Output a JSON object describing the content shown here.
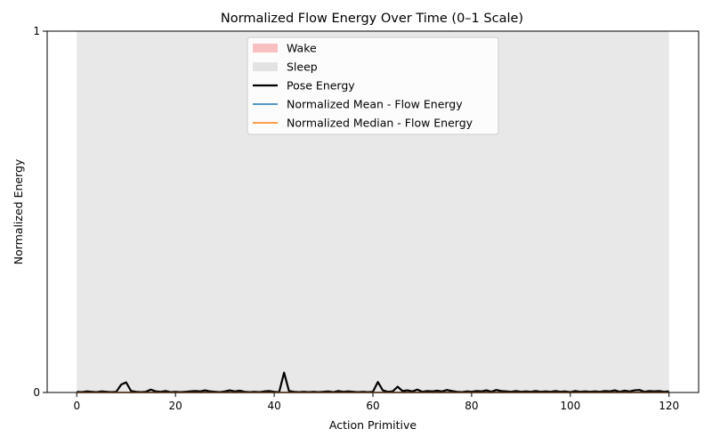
{
  "chart_data": {
    "type": "line",
    "title": "Normalized Flow Energy Over Time (0–1 Scale)",
    "xlabel": "Action Primitive",
    "ylabel": "Normalized Energy",
    "xlim": [
      -6,
      126
    ],
    "ylim": [
      0,
      1
    ],
    "xticks": [
      "0",
      "20",
      "40",
      "60",
      "80",
      "100",
      "120"
    ],
    "yticks": [
      "0",
      "1"
    ],
    "grid": false,
    "legend_position": "top-center",
    "regions": [
      {
        "name": "Wake",
        "color": "#f7a6a6",
        "spans": []
      },
      {
        "name": "Sleep",
        "color": "#d9d9d9",
        "spans": [
          [
            0,
            120
          ]
        ]
      }
    ],
    "series": [
      {
        "name": "Pose Energy",
        "color": "#000000",
        "x": [
          0,
          1,
          2,
          3,
          4,
          5,
          6,
          7,
          8,
          9,
          10,
          11,
          12,
          13,
          14,
          15,
          16,
          17,
          18,
          19,
          20,
          21,
          22,
          23,
          24,
          25,
          26,
          27,
          28,
          29,
          30,
          31,
          32,
          33,
          34,
          35,
          36,
          37,
          38,
          39,
          40,
          41,
          42,
          43,
          44,
          45,
          46,
          47,
          48,
          49,
          50,
          51,
          52,
          53,
          54,
          55,
          56,
          57,
          58,
          59,
          60,
          61,
          62,
          63,
          64,
          65,
          66,
          67,
          68,
          69,
          70,
          71,
          72,
          73,
          74,
          75,
          76,
          77,
          78,
          79,
          80,
          81,
          82,
          83,
          84,
          85,
          86,
          87,
          88,
          89,
          90,
          91,
          92,
          93,
          94,
          95,
          96,
          97,
          98,
          99,
          100,
          101,
          102,
          103,
          104,
          105,
          106,
          107,
          108,
          109,
          110,
          111,
          112,
          113,
          114,
          115,
          116,
          117,
          118,
          119,
          120
        ],
        "values": [
          0.002,
          0.001,
          0.003,
          0.002,
          0.001,
          0.003,
          0.002,
          0.001,
          0.002,
          0.022,
          0.028,
          0.004,
          0.002,
          0.001,
          0.002,
          0.008,
          0.003,
          0.002,
          0.004,
          0.001,
          0.002,
          0.001,
          0.002,
          0.003,
          0.004,
          0.003,
          0.006,
          0.003,
          0.002,
          0.001,
          0.003,
          0.006,
          0.003,
          0.005,
          0.002,
          0.001,
          0.002,
          0.001,
          0.003,
          0.004,
          0.002,
          0.001,
          0.055,
          0.004,
          0.002,
          0.001,
          0.002,
          0.001,
          0.002,
          0.001,
          0.002,
          0.003,
          0.001,
          0.004,
          0.002,
          0.003,
          0.002,
          0.001,
          0.002,
          0.001,
          0.002,
          0.029,
          0.006,
          0.002,
          0.003,
          0.016,
          0.004,
          0.006,
          0.003,
          0.008,
          0.002,
          0.004,
          0.003,
          0.005,
          0.003,
          0.007,
          0.004,
          0.002,
          0.001,
          0.003,
          0.002,
          0.004,
          0.003,
          0.006,
          0.002,
          0.007,
          0.004,
          0.003,
          0.002,
          0.004,
          0.002,
          0.003,
          0.002,
          0.004,
          0.002,
          0.003,
          0.002,
          0.004,
          0.002,
          0.003,
          0.001,
          0.004,
          0.002,
          0.003,
          0.002,
          0.003,
          0.002,
          0.004,
          0.003,
          0.006,
          0.002,
          0.005,
          0.003,
          0.006,
          0.007,
          0.002,
          0.004,
          0.003,
          0.004,
          0.002,
          0.003
        ]
      },
      {
        "name": "Normalized Mean - Flow Energy",
        "color": "#1f77b4",
        "x": [
          0,
          120
        ],
        "values": [
          0.0,
          0.0
        ]
      },
      {
        "name": "Normalized Median - Flow Energy",
        "color": "#ff7f0e",
        "x": [
          0,
          120
        ],
        "values": [
          0.0,
          0.0
        ]
      }
    ]
  }
}
